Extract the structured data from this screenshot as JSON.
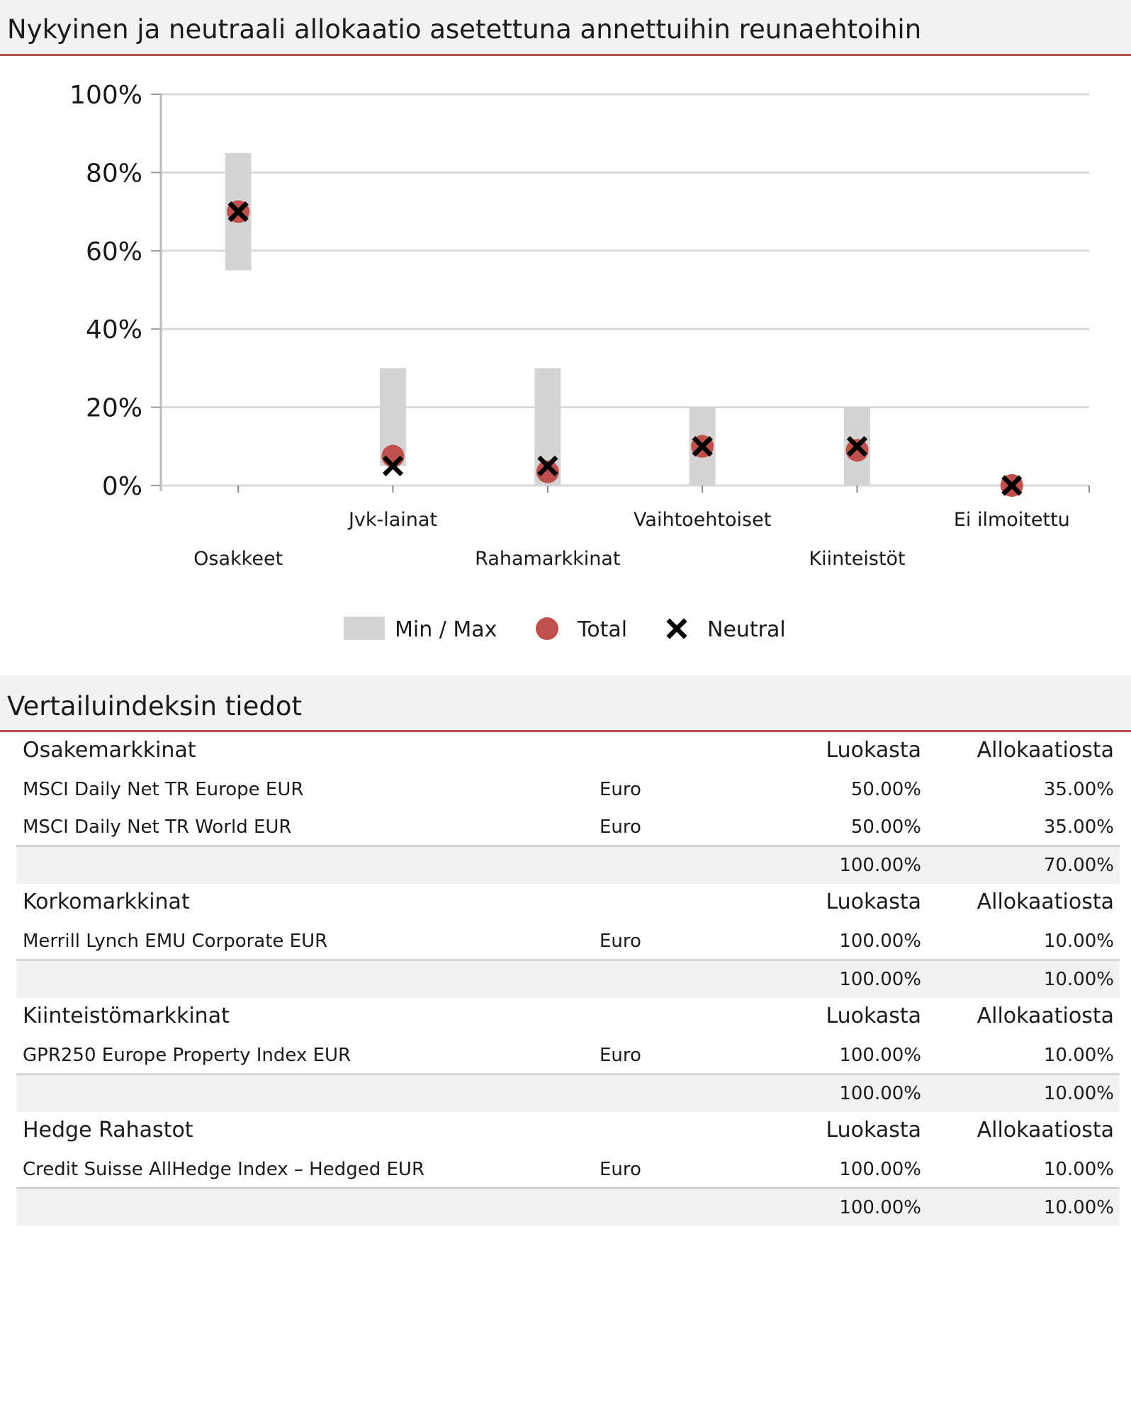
{
  "header1": "Nykyinen ja neutraali allokaatio asetettuna annettuihin reunaehtoihin",
  "header2": "Vertailuindeksin tiedot",
  "colors": {
    "accent": "#c0504d",
    "minmax": "#d4d4d4",
    "neutral": "#000000",
    "grid": "#d9d9d9"
  },
  "chart_data": {
    "type": "scatter",
    "title": "",
    "xlabel": "",
    "ylabel": "",
    "ylim": [
      0,
      100
    ],
    "y_ticks": [
      "0%",
      "20%",
      "40%",
      "60%",
      "80%",
      "100%"
    ],
    "grid": true,
    "legend_position": "bottom-center",
    "categories": [
      "Osakkeet",
      "Jvk-lainat",
      "Rahamarkkinat",
      "Vaihtoehtoiset",
      "Kiinteistöt",
      "Ei ilmoitettu"
    ],
    "series": [
      {
        "name": "Min / Max",
        "kind": "range",
        "min": [
          55,
          5,
          0,
          0,
          0,
          null
        ],
        "max": [
          85,
          30,
          30,
          20,
          20,
          null
        ]
      },
      {
        "name": "Total",
        "kind": "circle",
        "values": [
          70,
          7.5,
          3.5,
          10,
          9,
          0
        ]
      },
      {
        "name": "Neutral",
        "kind": "cross",
        "values": [
          70,
          5,
          5,
          10,
          10,
          0
        ]
      }
    ]
  },
  "groups": [
    {
      "name": "Osakemarkkinat",
      "col1": "Luokasta",
      "col2": "Allokaatiosta",
      "rows": [
        {
          "name": "MSCI Daily Net TR Europe EUR",
          "currency": "Euro",
          "share": "50.00%",
          "alloc": "35.00%"
        },
        {
          "name": "MSCI Daily Net TR World EUR",
          "currency": "Euro",
          "share": "50.00%",
          "alloc": "35.00%"
        }
      ],
      "total_share": "100.00%",
      "total_alloc": "70.00%"
    },
    {
      "name": "Korkomarkkinat",
      "col1": "Luokasta",
      "col2": "Allokaatiosta",
      "rows": [
        {
          "name": "Merrill Lynch EMU Corporate EUR",
          "currency": "Euro",
          "share": "100.00%",
          "alloc": "10.00%"
        }
      ],
      "total_share": "100.00%",
      "total_alloc": "10.00%"
    },
    {
      "name": "Kiinteistömarkkinat",
      "col1": "Luokasta",
      "col2": "Allokaatiosta",
      "rows": [
        {
          "name": "GPR250 Europe Property Index EUR",
          "currency": "Euro",
          "share": "100.00%",
          "alloc": "10.00%"
        }
      ],
      "total_share": "100.00%",
      "total_alloc": "10.00%"
    },
    {
      "name": "Hedge Rahastot",
      "col1": "Luokasta",
      "col2": "Allokaatiosta",
      "rows": [
        {
          "name": "Credit Suisse AllHedge Index – Hedged EUR",
          "currency": "Euro",
          "share": "100.00%",
          "alloc": "10.00%"
        }
      ],
      "total_share": "100.00%",
      "total_alloc": "10.00%"
    }
  ]
}
